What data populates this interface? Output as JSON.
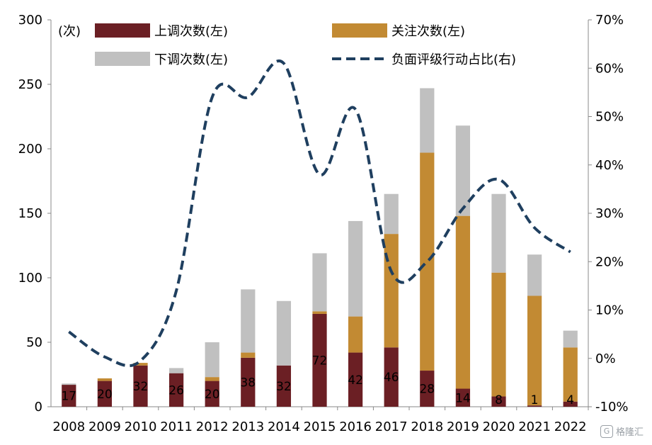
{
  "chart_data": {
    "type": "bar",
    "stacked": true,
    "categories": [
      "2008",
      "2009",
      "2010",
      "2011",
      "2012",
      "2013",
      "2014",
      "2015",
      "2016",
      "2017",
      "2018",
      "2019",
      "2020",
      "2021",
      "2022"
    ],
    "left_axis": {
      "ylim": [
        0,
        300
      ],
      "ticks": [
        "0",
        "50",
        "100",
        "150",
        "200",
        "250",
        "300"
      ],
      "unit_label": "(次)"
    },
    "right_axis": {
      "ylim": [
        -10,
        70
      ],
      "ticks": [
        "-10%",
        "0%",
        "10%",
        "20%",
        "30%",
        "40%",
        "50%",
        "60%",
        "70%"
      ]
    },
    "series": [
      {
        "name": "上调次数(左)",
        "kind": "bar",
        "axis": "left",
        "color": "#6b1f24",
        "values": [
          17,
          20,
          32,
          26,
          20,
          38,
          32,
          72,
          42,
          46,
          28,
          14,
          8,
          1,
          4
        ],
        "data_labels": [
          "17",
          "20",
          "32",
          "26",
          "20",
          "38",
          "32",
          "72",
          "42",
          "46",
          "28",
          "14",
          "8",
          "1",
          "4"
        ]
      },
      {
        "name": "关注次数(左)",
        "kind": "bar",
        "axis": "left",
        "color": "#c28a33",
        "values": [
          0,
          2,
          2,
          0,
          3,
          4,
          0,
          2,
          28,
          88,
          169,
          134,
          96,
          85,
          42
        ]
      },
      {
        "name": "下调次数(左)",
        "kind": "bar",
        "axis": "left",
        "color": "#c0c0c0",
        "values": [
          1,
          0,
          0,
          4,
          27,
          49,
          50,
          45,
          74,
          31,
          50,
          70,
          61,
          32,
          13
        ]
      },
      {
        "name": "负面评级行动占比(右)",
        "kind": "line",
        "axis": "right",
        "color": "#1f3f5f",
        "dashed": true,
        "values": [
          5.5,
          0.3,
          -0.5,
          14,
          54,
          54,
          61,
          38,
          51.5,
          18,
          20,
          31,
          37,
          27,
          22
        ]
      }
    ],
    "legend": "top"
  }
}
